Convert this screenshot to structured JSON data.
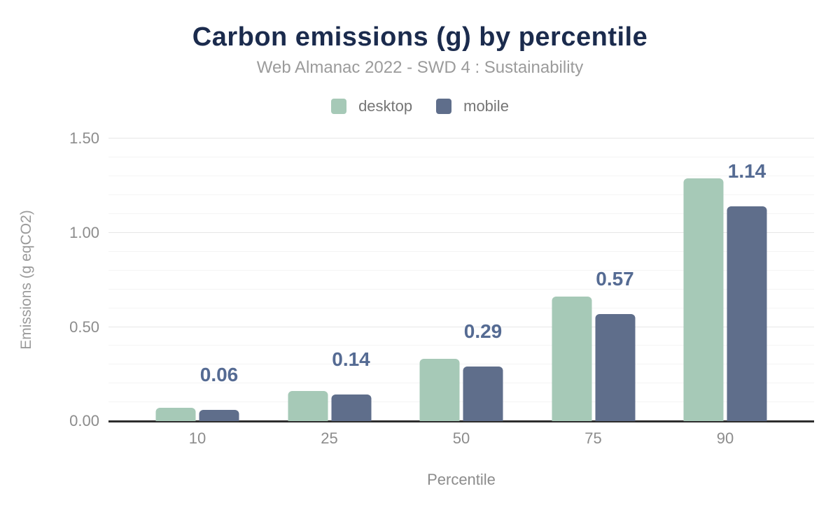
{
  "header": {
    "title": "Carbon emissions (g) by percentile",
    "subtitle": "Web Almanac 2022 - SWD 4 : Sustainability"
  },
  "legend": {
    "items": [
      {
        "label": "desktop",
        "color": "#a6c9b7"
      },
      {
        "label": "mobile",
        "color": "#5f6e8b"
      }
    ]
  },
  "chart_data": {
    "type": "bar",
    "title": "Carbon emissions (g) by percentile",
    "subtitle": "Web Almanac 2022 - SWD 4 : Sustainability",
    "categories": [
      "10",
      "25",
      "50",
      "75",
      "90"
    ],
    "series": [
      {
        "name": "desktop",
        "color": "#a6c9b7",
        "values": [
          0.07,
          0.16,
          0.33,
          0.66,
          1.29
        ]
      },
      {
        "name": "mobile",
        "color": "#5f6e8b",
        "values": [
          0.06,
          0.14,
          0.29,
          0.57,
          1.14
        ]
      }
    ],
    "data_labels": {
      "series": "mobile",
      "values": [
        "0.06",
        "0.14",
        "0.29",
        "0.57",
        "1.14"
      ],
      "color": "#556b93"
    },
    "xlabel": "Percentile",
    "ylabel": "Emissions (g eqCO2)",
    "ylim": [
      0,
      1.5
    ],
    "y_major_ticks": [
      0,
      0.5,
      1.0,
      1.5
    ],
    "y_tick_labels": [
      "0.00",
      "0.50",
      "1.00",
      "1.50"
    ],
    "y_minor_grid_step": 0.1,
    "grid": true,
    "legend_position": "top",
    "colors": {
      "title": "#1b2b4d",
      "subtitle": "#9b9b9b",
      "axis_text": "#8c8c8c",
      "axis_line": "#2d2d2d",
      "grid_major": "#e7e7e7",
      "grid_minor": "#f4f4f4"
    }
  }
}
